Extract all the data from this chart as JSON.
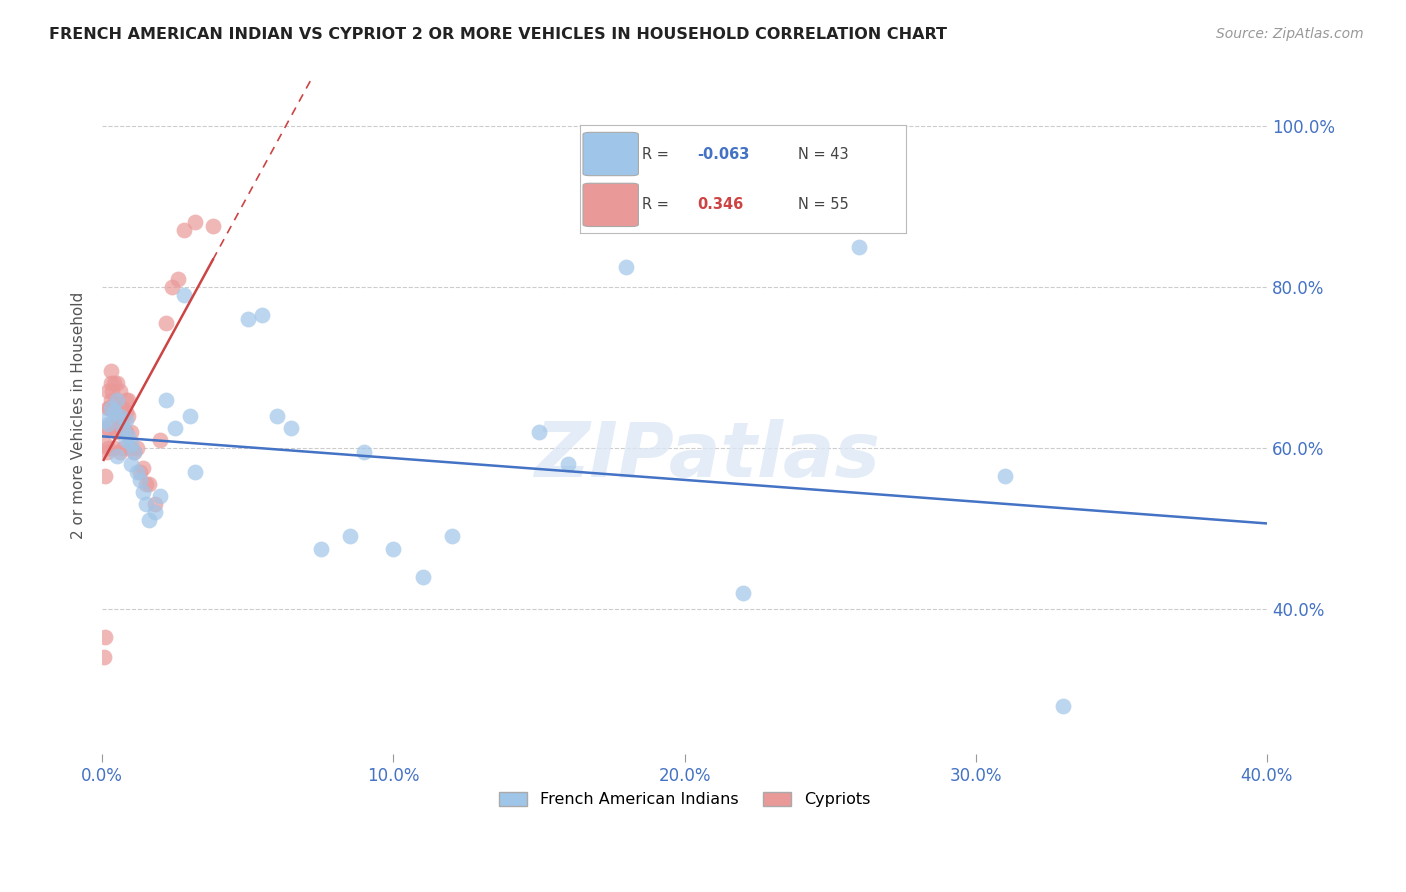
{
  "title": "FRENCH AMERICAN INDIAN VS CYPRIOT 2 OR MORE VEHICLES IN HOUSEHOLD CORRELATION CHART",
  "source": "Source: ZipAtlas.com",
  "ylabel": "2 or more Vehicles in Household",
  "R_blue": -0.063,
  "N_blue": 43,
  "R_pink": 0.346,
  "N_pink": 55,
  "xlim": [
    0.0,
    0.4
  ],
  "ylim": [
    0.22,
    1.06
  ],
  "ytick_vals": [
    0.4,
    0.6,
    0.8,
    1.0
  ],
  "xtick_vals": [
    0.0,
    0.1,
    0.2,
    0.3,
    0.4
  ],
  "xtick_labels": [
    "0.0%",
    "10.0%",
    "20.0%",
    "30.0%",
    "40.0%"
  ],
  "ytick_labels": [
    "40.0%",
    "60.0%",
    "80.0%",
    "100.0%"
  ],
  "blue_color": "#9fc5e8",
  "pink_color": "#ea9999",
  "blue_line_color": "#4472c4",
  "pink_line_color": "#cc4444",
  "watermark": "ZIPatlas",
  "blue_x": [
    0.001,
    0.002,
    0.003,
    0.004,
    0.005,
    0.005,
    0.006,
    0.007,
    0.008,
    0.008,
    0.009,
    0.01,
    0.01,
    0.011,
    0.012,
    0.013,
    0.014,
    0.015,
    0.016,
    0.018,
    0.02,
    0.022,
    0.025,
    0.028,
    0.03,
    0.032,
    0.05,
    0.055,
    0.06,
    0.065,
    0.075,
    0.085,
    0.09,
    0.1,
    0.11,
    0.12,
    0.16,
    0.22,
    0.31,
    0.33,
    0.15,
    0.18,
    0.26
  ],
  "blue_y": [
    0.635,
    0.63,
    0.65,
    0.645,
    0.66,
    0.59,
    0.64,
    0.625,
    0.635,
    0.61,
    0.615,
    0.605,
    0.58,
    0.595,
    0.57,
    0.56,
    0.545,
    0.53,
    0.51,
    0.52,
    0.54,
    0.66,
    0.625,
    0.79,
    0.64,
    0.57,
    0.76,
    0.765,
    0.64,
    0.625,
    0.475,
    0.49,
    0.595,
    0.475,
    0.44,
    0.49,
    0.58,
    0.42,
    0.565,
    0.28,
    0.62,
    0.825,
    0.85
  ],
  "pink_x": [
    0.0005,
    0.001,
    0.001,
    0.001,
    0.001,
    0.0015,
    0.002,
    0.002,
    0.002,
    0.002,
    0.0025,
    0.003,
    0.003,
    0.003,
    0.003,
    0.003,
    0.0035,
    0.004,
    0.004,
    0.004,
    0.004,
    0.004,
    0.005,
    0.005,
    0.005,
    0.005,
    0.006,
    0.006,
    0.006,
    0.006,
    0.007,
    0.007,
    0.007,
    0.007,
    0.008,
    0.008,
    0.008,
    0.009,
    0.009,
    0.01,
    0.01,
    0.011,
    0.012,
    0.013,
    0.014,
    0.015,
    0.016,
    0.018,
    0.02,
    0.022,
    0.024,
    0.026,
    0.028,
    0.032,
    0.038
  ],
  "pink_y": [
    0.34,
    0.365,
    0.565,
    0.605,
    0.625,
    0.595,
    0.6,
    0.625,
    0.65,
    0.67,
    0.65,
    0.63,
    0.65,
    0.68,
    0.695,
    0.66,
    0.67,
    0.6,
    0.625,
    0.65,
    0.68,
    0.655,
    0.62,
    0.64,
    0.66,
    0.68,
    0.595,
    0.625,
    0.65,
    0.67,
    0.6,
    0.625,
    0.65,
    0.64,
    0.62,
    0.645,
    0.66,
    0.64,
    0.66,
    0.6,
    0.62,
    0.595,
    0.6,
    0.57,
    0.575,
    0.555,
    0.555,
    0.53,
    0.61,
    0.755,
    0.8,
    0.81,
    0.87,
    0.88,
    0.875
  ]
}
